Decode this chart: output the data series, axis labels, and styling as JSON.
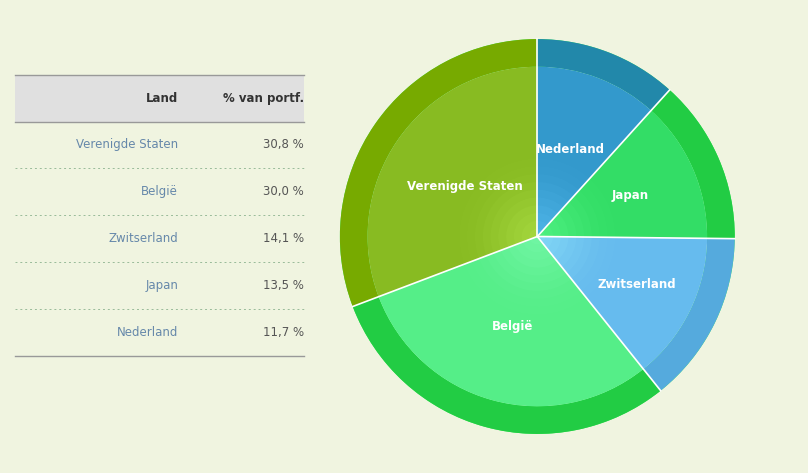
{
  "background_color": "#f0f4e0",
  "table_header_bg": "#e0e0e0",
  "table_header_color": "#333333",
  "table_text_color": "#6688aa",
  "table_value_color": "#555555",
  "labels": [
    "Verenigde Staten",
    "België",
    "Zwitserland",
    "Japan",
    "Nederland"
  ],
  "values": [
    30.8,
    30.0,
    14.1,
    13.5,
    11.7
  ],
  "value_labels": [
    "30,8 %",
    "30,0 %",
    "14,1 %",
    "13,5 %",
    "11,7 %"
  ],
  "pie_labels_ordered": [
    "Nederland",
    "Japan",
    "Zwitserland",
    "België",
    "Verenigde Staten"
  ],
  "pie_values_ordered": [
    11.7,
    13.5,
    14.1,
    30.0,
    30.8
  ],
  "pie_colors": [
    "#3399cc",
    "#33dd66",
    "#66bbee",
    "#55ee88",
    "#88bb22"
  ],
  "pie_inner_colors": [
    "#2277aa",
    "#22bb44",
    "#4499cc",
    "#33cc66",
    "#668800"
  ],
  "ring_colors": [
    "#2288aa",
    "#22cc44",
    "#55aadd",
    "#22cc44",
    "#77aa00"
  ],
  "outer_ring_color": "#33ee55",
  "label_color": "#ffffff",
  "separator_color": "#ffffff"
}
